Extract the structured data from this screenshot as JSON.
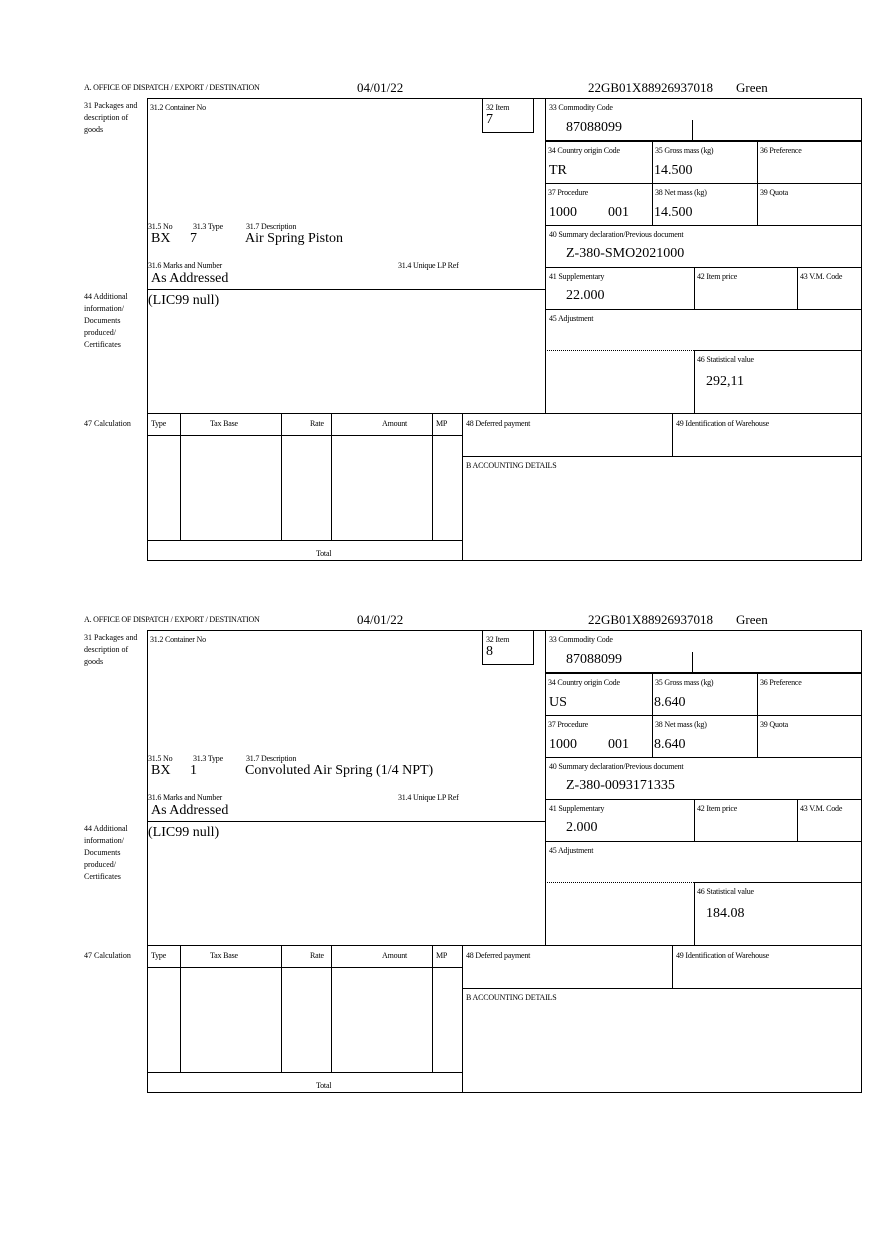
{
  "labels": {
    "office": "A.  OFFICE OF DISPATCH / EXPORT / DESTINATION",
    "packages": "31 Packages and description of goods",
    "container": "31.2 Container No",
    "item": "32 Item",
    "no": "31.5 No",
    "type": "31.3 Type",
    "description": "31.7 Description",
    "marks": "31.6 Marks and Number",
    "unique_ref": "31.4 Unique LP Ref",
    "additional": "44 Additional information/ Documents produced/ Certificates",
    "commodity": "33 Commodity Code",
    "country": "34 Country origin Code",
    "gross": "35 Gross mass (kg)",
    "preference": "36 Preference",
    "procedure": "37 Procedure",
    "net": "38 Net mass (kg)",
    "quota": "39 Quota",
    "summary": "40 Summary declaration/Previous document",
    "supplementary": "41 Supplementary",
    "item_price": "42 Item price",
    "vm_code": "43 V.M. Code",
    "adjustment": "45 Adjustment",
    "statistical": "46 Statistical value",
    "calculation": "47 Calculation",
    "calc_type": "Type",
    "tax_base": "Tax Base",
    "rate": "Rate",
    "amount": "Amount",
    "mp": "MP",
    "total": "Total",
    "deferred": "48 Deferred payment",
    "warehouse": "49 Identification of Warehouse",
    "accounting": "B ACCOUNTING DETAILS"
  },
  "forms": [
    {
      "date": "04/01/22",
      "reference": "22GB01X88926937018",
      "route": "Green",
      "item": "7",
      "no": "BX",
      "type": "7",
      "description": "Air Spring Piston",
      "marks": "As Addressed",
      "additional": "(LIC99 null)",
      "commodity": "87088099",
      "country": "TR",
      "gross": "14.500",
      "procedure": "1000",
      "procedure_add": "001",
      "net": "14.500",
      "summary": "Z-380-SMO2021000",
      "supplementary": "22.000",
      "statistical": "292,11"
    },
    {
      "date": "04/01/22",
      "reference": "22GB01X88926937018",
      "route": "Green",
      "item": "8",
      "no": "BX",
      "type": "1",
      "description": "Convoluted Air Spring (1/4 NPT)",
      "marks": "As Addressed",
      "additional": "(LIC99 null)",
      "commodity": "87088099",
      "country": "US",
      "gross": "8.640",
      "procedure": "1000",
      "procedure_add": "001",
      "net": "8.640",
      "summary": "Z-380-0093171335",
      "supplementary": "2.000",
      "statistical": "184.08"
    }
  ]
}
